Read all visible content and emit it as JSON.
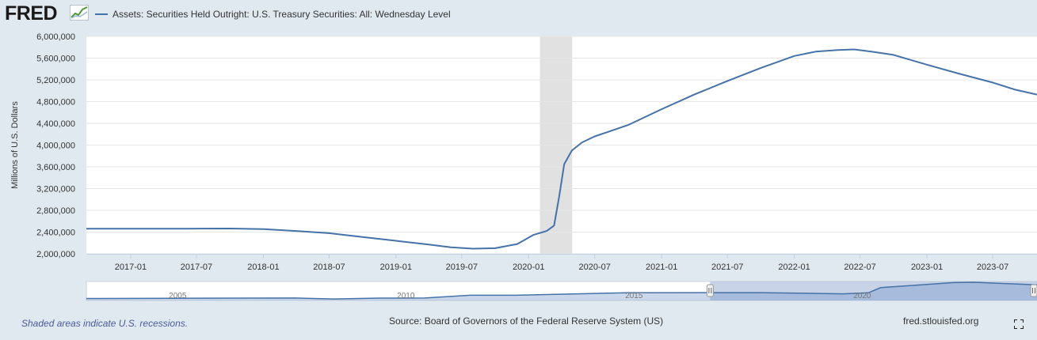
{
  "header": {
    "logo": "FRED",
    "series_title": "Assets: Securities Held Outright: U.S. Treasury Securities: All: Wednesday Level"
  },
  "colors": {
    "series_line": "#4572a7",
    "recession": "#e1e1e1",
    "background": "#e1e9f0",
    "navigator_selected": "#a3b5d9"
  },
  "chart_data": {
    "type": "line",
    "title": "",
    "ylabel": "Millions of U.S. Dollars",
    "xlabel": "",
    "ylim": [
      2000000,
      6000000
    ],
    "xlim": [
      "2016-09-01",
      "2023-10-31"
    ],
    "y_ticks": [
      2000000,
      2400000,
      2800000,
      3200000,
      3600000,
      4000000,
      4400000,
      4800000,
      5200000,
      5600000,
      6000000
    ],
    "y_tick_labels": [
      "2,000,000",
      "2,400,000",
      "2,800,000",
      "3,200,000",
      "3,600,000",
      "4,000,000",
      "4,400,000",
      "4,800,000",
      "5,200,000",
      "5,600,000",
      "6,000,000"
    ],
    "x_ticks": [
      "2017-01-01",
      "2017-07-01",
      "2018-01-01",
      "2018-07-01",
      "2019-01-01",
      "2019-07-01",
      "2020-01-01",
      "2020-07-01",
      "2021-01-01",
      "2021-07-01",
      "2022-01-01",
      "2022-07-01",
      "2023-01-01",
      "2023-07-01"
    ],
    "x_tick_labels": [
      "2017-01",
      "2017-07",
      "2018-01",
      "2018-07",
      "2019-01",
      "2019-07",
      "2020-01",
      "2020-07",
      "2021-01",
      "2021-07",
      "2022-01",
      "2022-07",
      "2023-01",
      "2023-07"
    ],
    "grid": "horizontal",
    "recessions": [
      {
        "start": "2020-02-01",
        "end": "2020-04-30"
      }
    ],
    "series": [
      {
        "name": "Assets: Securities Held Outright: U.S. Treasury Securities: All: Wednesday Level",
        "x": [
          "2016-09-01",
          "2017-01-01",
          "2017-06-01",
          "2017-10-01",
          "2018-01-01",
          "2018-04-01",
          "2018-07-01",
          "2018-10-01",
          "2019-01-01",
          "2019-04-01",
          "2019-06-01",
          "2019-08-01",
          "2019-10-01",
          "2019-12-01",
          "2020-01-15",
          "2020-02-20",
          "2020-03-11",
          "2020-03-25",
          "2020-04-08",
          "2020-04-29",
          "2020-05-27",
          "2020-07-01",
          "2020-10-01",
          "2021-01-01",
          "2021-04-01",
          "2021-07-01",
          "2021-10-01",
          "2022-01-01",
          "2022-03-01",
          "2022-05-01",
          "2022-06-15",
          "2022-08-01",
          "2022-10-01",
          "2023-01-01",
          "2023-04-01",
          "2023-07-01",
          "2023-09-01",
          "2023-10-31"
        ],
        "y": [
          2463000,
          2463000,
          2463000,
          2465000,
          2454000,
          2420000,
          2380000,
          2310000,
          2240000,
          2170000,
          2120000,
          2094000,
          2104000,
          2180000,
          2350000,
          2420000,
          2520000,
          3050000,
          3650000,
          3900000,
          4050000,
          4160000,
          4370000,
          4660000,
          4930000,
          5180000,
          5420000,
          5640000,
          5720000,
          5750000,
          5760000,
          5720000,
          5660000,
          5480000,
          5310000,
          5150000,
          5020000,
          4930000
        ]
      }
    ]
  },
  "navigator": {
    "labels": [
      "2005",
      "2010",
      "2015",
      "2020"
    ],
    "years": [
      2005,
      2010,
      2015,
      2020
    ],
    "range_start": "2003-01-01",
    "range_end": "2023-10-31",
    "selected_start": "2016-09-01",
    "selected_end": "2023-10-31",
    "points_x": [
      "2003-01-01",
      "2007-08-01",
      "2008-06-01",
      "2009-06-01",
      "2010-06-01",
      "2011-06-01",
      "2012-06-01",
      "2014-11-01",
      "2017-10-01",
      "2019-08-01",
      "2020-02-20",
      "2020-05-27",
      "2021-01-01",
      "2022-01-01",
      "2022-06-15",
      "2023-10-31"
    ],
    "points_y": [
      630000,
      780000,
      480000,
      750000,
      780000,
      1660000,
      1660000,
      2460000,
      2465000,
      2094000,
      2420000,
      4050000,
      4660000,
      5640000,
      5760000,
      4930000
    ]
  },
  "footer": {
    "recession_note": "Shaded areas indicate U.S. recessions.",
    "source": "Source: Board of Governors of the Federal Reserve System (US)",
    "site": "fred.stlouisfed.org"
  },
  "icons": {
    "logo_graph": "line-graph-icon",
    "fullscreen": "fullscreen-icon"
  }
}
